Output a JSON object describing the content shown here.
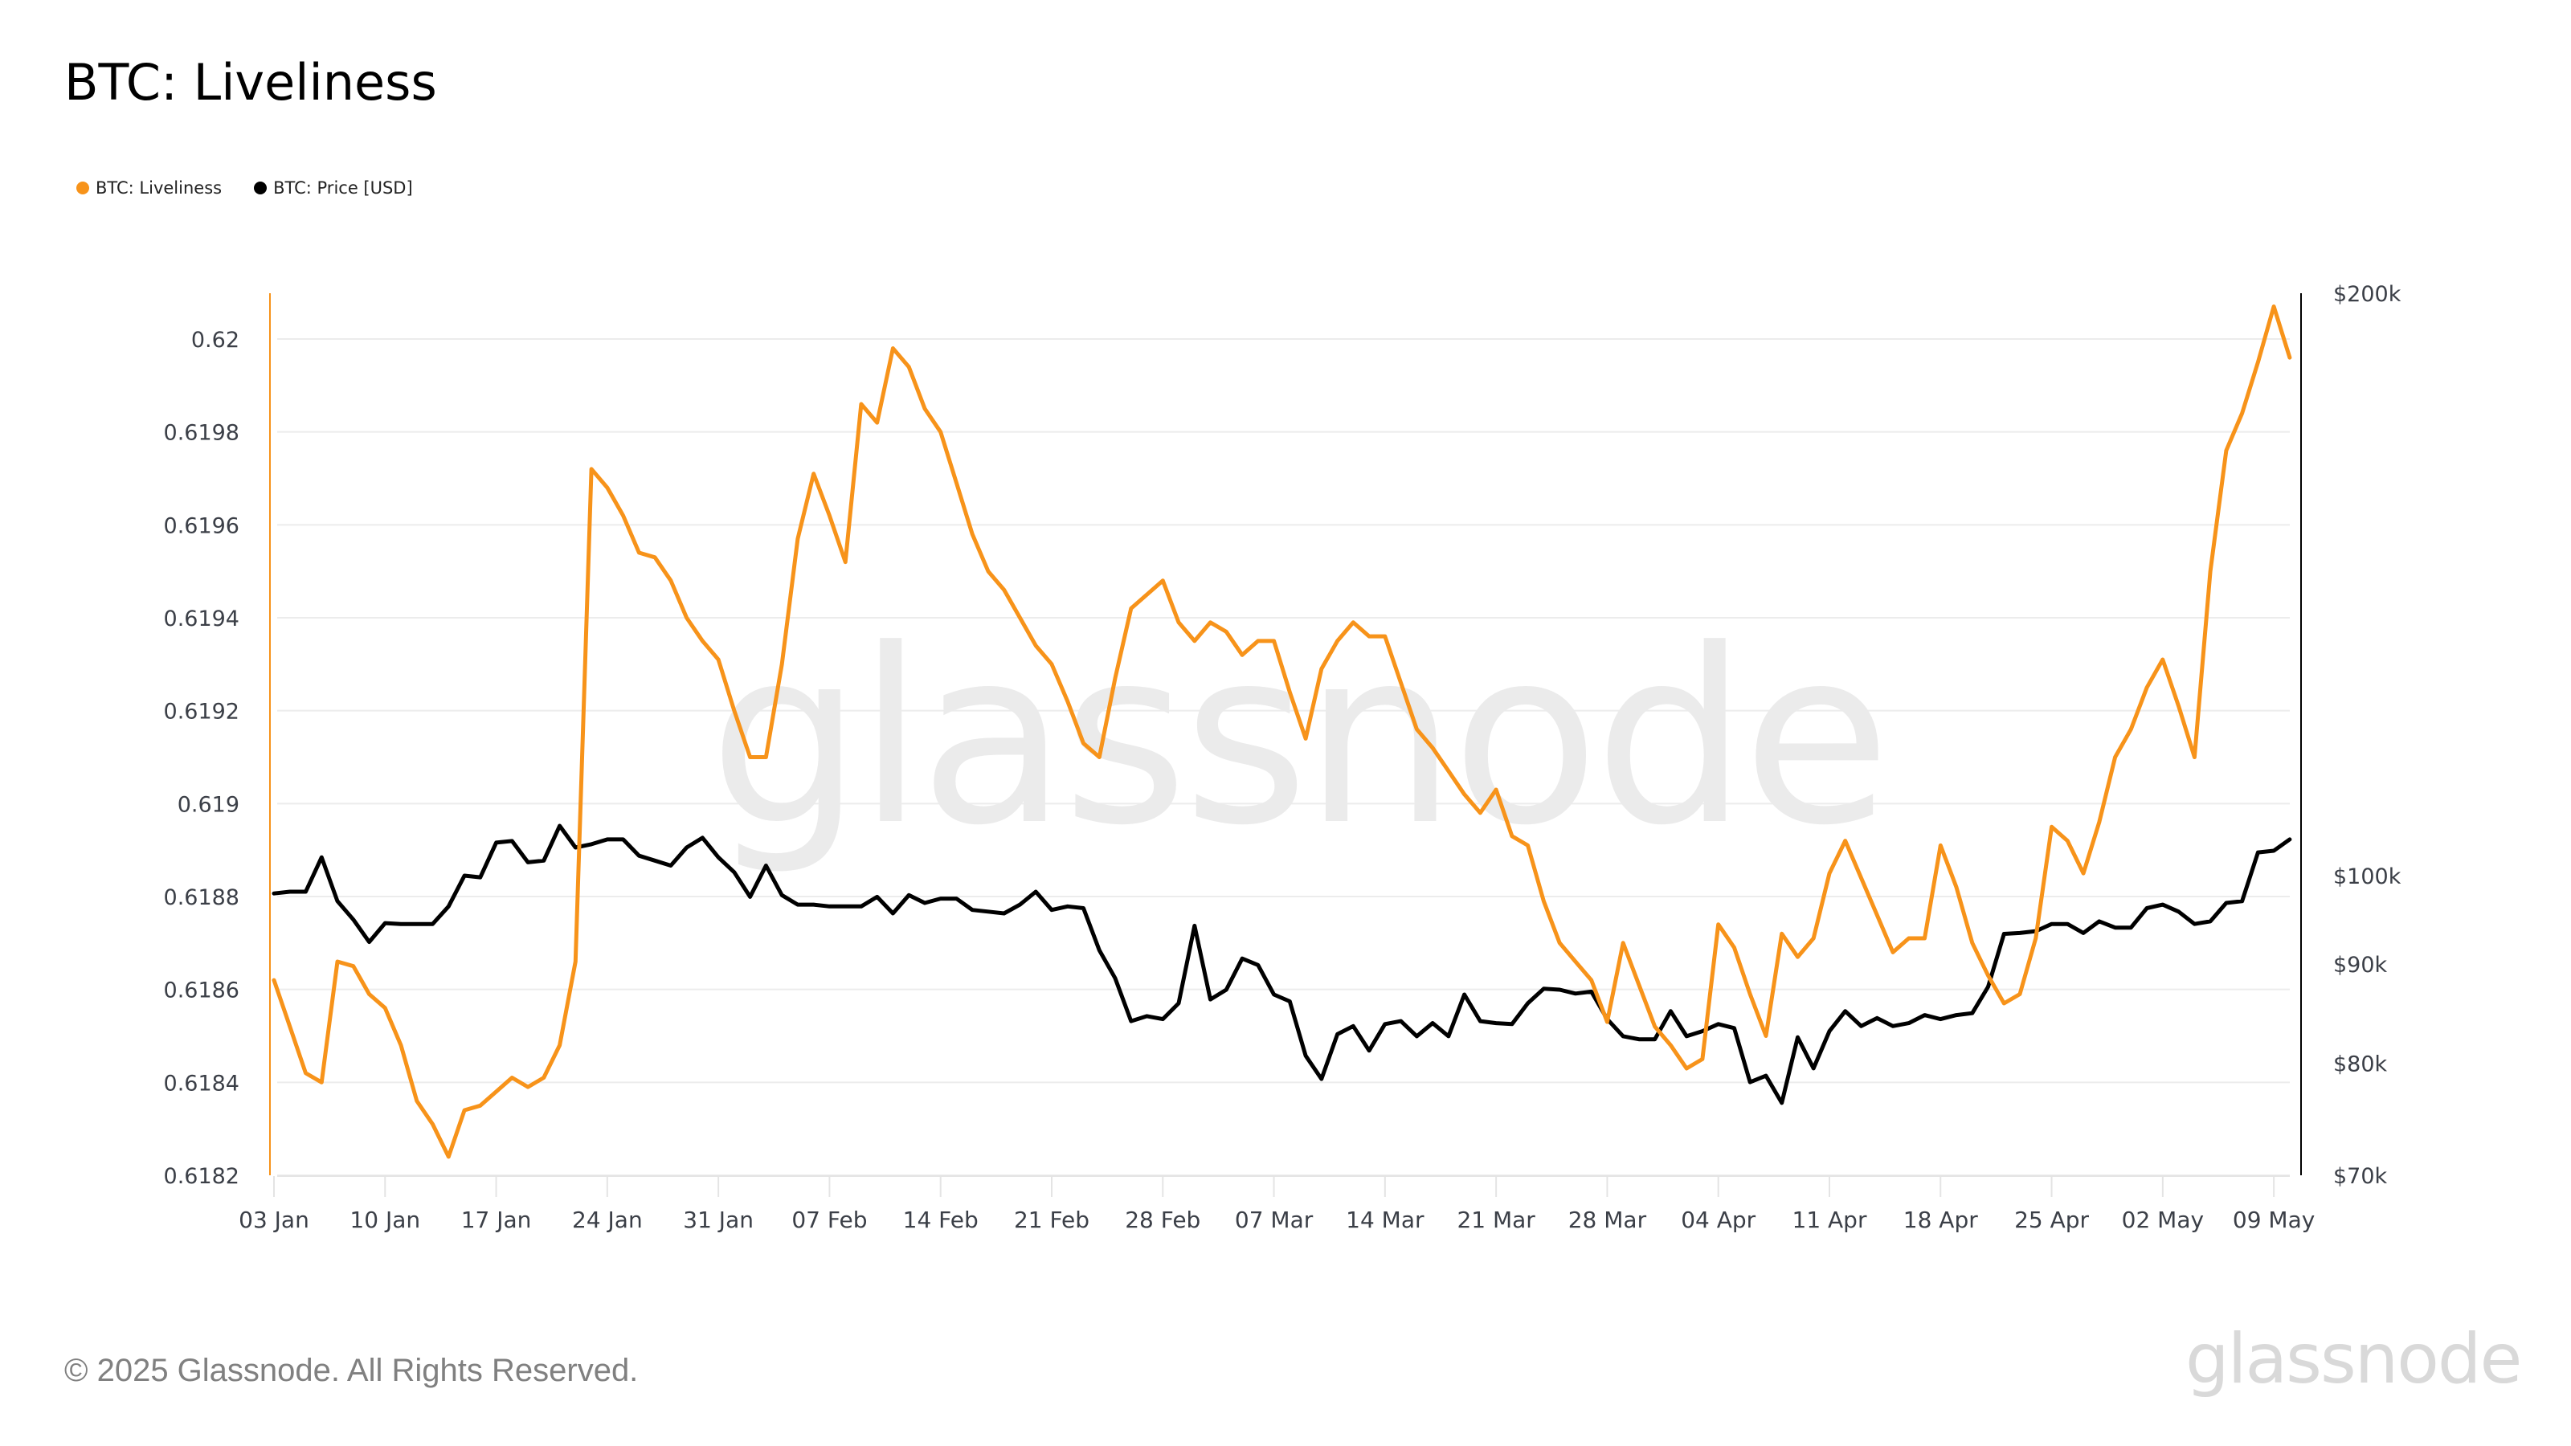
{
  "title": "BTC: Liveliness",
  "legend": [
    {
      "label": "BTC: Liveliness",
      "color": "#f7931a"
    },
    {
      "label": "BTC: Price [USD]",
      "color": "#000000"
    }
  ],
  "watermark": "glassnode",
  "footer": {
    "copyright": "© 2025 Glassnode. All Rights Reserved.",
    "logo": "glassnode"
  },
  "colors": {
    "liveliness": "#f7931a",
    "price": "#000000",
    "grid": "#ececec",
    "left_axis": "#f7931a",
    "right_axis": "#000000",
    "tick_text": "#3b3f47",
    "watermark": "#ebebeb"
  },
  "chart_data": {
    "type": "line",
    "title": "BTC: Liveliness",
    "xlabel": "",
    "ylabel_left": "Liveliness",
    "ylabel_right": "Price [USD]",
    "start_date": "03 Jan",
    "end_date": "10 May",
    "x_ticks": [
      "03 Jan",
      "10 Jan",
      "17 Jan",
      "24 Jan",
      "31 Jan",
      "07 Feb",
      "14 Feb",
      "21 Feb",
      "28 Feb",
      "07 Mar",
      "14 Mar",
      "21 Mar",
      "28 Mar",
      "04 Apr",
      "11 Apr",
      "18 Apr",
      "25 Apr",
      "02 May",
      "09 May"
    ],
    "y_left": {
      "ticks": [
        "0.62",
        "0.6198",
        "0.6196",
        "0.6194",
        "0.6192",
        "0.619",
        "0.6188",
        "0.6186",
        "0.6184",
        "0.6182"
      ],
      "range": [
        0.6182,
        0.62
      ],
      "scale": "linear"
    },
    "y_right": {
      "ticks": [
        "$200k",
        "$100k",
        "$90k",
        "$80k",
        "$70k"
      ],
      "tick_values": [
        200000,
        100000,
        90000,
        80000,
        70000
      ],
      "range": [
        70000,
        200000
      ],
      "scale": "log"
    },
    "grid": true,
    "legend_position": "top-left",
    "series": [
      {
        "name": "BTC: Liveliness",
        "axis": "left",
        "values": [
          0.61862,
          0.61852,
          0.61842,
          0.6184,
          0.61866,
          0.61865,
          0.61859,
          0.61856,
          0.61848,
          0.61836,
          0.61831,
          0.61824,
          0.61834,
          0.61835,
          0.61838,
          0.61841,
          0.61839,
          0.61841,
          0.61848,
          0.61866,
          0.61972,
          0.61968,
          0.61962,
          0.61954,
          0.61953,
          0.61948,
          0.6194,
          0.61935,
          0.61931,
          0.6192,
          0.6191,
          0.6191,
          0.6193,
          0.61957,
          0.61971,
          0.61962,
          0.61952,
          0.61986,
          0.61982,
          0.61998,
          0.61994,
          0.61985,
          0.6198,
          0.61969,
          0.61958,
          0.6195,
          0.61946,
          0.6194,
          0.61934,
          0.6193,
          0.61922,
          0.61913,
          0.6191,
          0.61927,
          0.61942,
          0.61945,
          0.61948,
          0.61939,
          0.61935,
          0.61939,
          0.61937,
          0.61932,
          0.61935,
          0.61935,
          0.61924,
          0.61914,
          0.61929,
          0.61935,
          0.61939,
          0.61936,
          0.61936,
          0.61926,
          0.61916,
          0.61912,
          0.61907,
          0.61902,
          0.61898,
          0.61903,
          0.61893,
          0.61891,
          0.61879,
          0.6187,
          0.61866,
          0.61862,
          0.61853,
          0.6187,
          0.61861,
          0.61852,
          0.61848,
          0.61843,
          0.61845,
          0.61874,
          0.61869,
          0.61859,
          0.6185,
          0.61872,
          0.61867,
          0.61871,
          0.61885,
          0.61892,
          0.61884,
          0.61876,
          0.61868,
          0.61871,
          0.61871,
          0.61891,
          0.61882,
          0.6187,
          0.61863,
          0.61857,
          0.61859,
          0.61871,
          0.61895,
          0.61892,
          0.61885,
          0.61896,
          0.6191,
          0.61916,
          0.61925,
          0.61931,
          0.61921,
          0.6191,
          0.6195,
          0.61976,
          0.61984,
          0.61995,
          0.62007,
          0.61996
        ]
      },
      {
        "name": "BTC: Price [USD]",
        "axis": "right",
        "values": [
          97900,
          98100,
          98100,
          102200,
          97000,
          94900,
          92400,
          94500,
          94400,
          94400,
          94400,
          96400,
          100000,
          99800,
          104000,
          104200,
          101600,
          101800,
          106100,
          103400,
          103800,
          104400,
          104400,
          102400,
          101800,
          101200,
          103400,
          104600,
          102200,
          100400,
          97500,
          101200,
          97700,
          96600,
          96600,
          96400,
          96400,
          96400,
          97500,
          95600,
          97700,
          96800,
          97300,
          97300,
          96000,
          95800,
          95600,
          96600,
          98100,
          96000,
          96400,
          96200,
          91500,
          88500,
          84100,
          84600,
          84300,
          85900,
          94200,
          86300,
          87300,
          90600,
          89900,
          86800,
          86100,
          80700,
          78500,
          82800,
          83600,
          81200,
          83800,
          84100,
          82600,
          83900,
          82600,
          86800,
          84100,
          83900,
          83800,
          85900,
          87400,
          87300,
          86900,
          87100,
          84300,
          82600,
          82300,
          82300,
          85100,
          82600,
          83100,
          83800,
          83400,
          78200,
          78800,
          76300,
          82500,
          79500,
          83100,
          85100,
          83600,
          84400,
          83600,
          83900,
          84700,
          84300,
          84700,
          84900,
          87600,
          93300,
          93400,
          93600,
          94400,
          94400,
          93400,
          94700,
          94000,
          94000,
          96200,
          96600,
          95800,
          94400,
          94700,
          96800,
          97000,
          102800,
          103000,
          104400
        ]
      }
    ]
  }
}
